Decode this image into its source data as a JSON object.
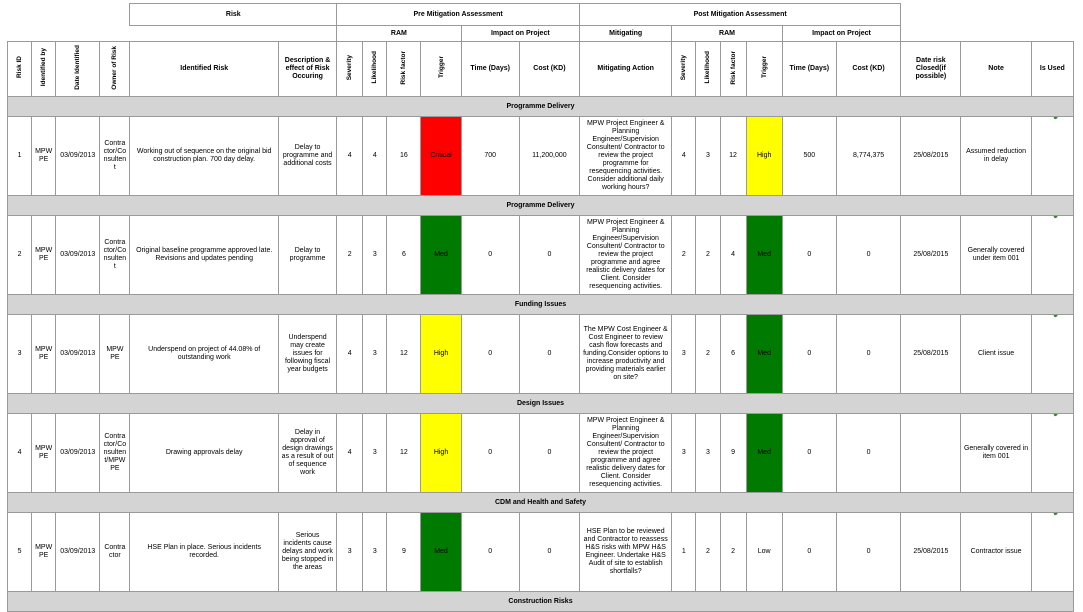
{
  "colors": {
    "critical": "#ff0000",
    "high": "#ffff00",
    "med": "#007a00",
    "low": "#ffffff",
    "section": "#d4d4d4",
    "tick": "#2e8b2e"
  },
  "headers": {
    "risk_group": "Risk",
    "pre_group": "Pre Mitigation Assessment",
    "post_group": "Post Mitigation Assessment",
    "ram": "RAM",
    "impact": "Impact on Project",
    "mitigating": "Mitigating",
    "ram_post": "RAM",
    "impact_post": "Impact on Project",
    "risk_id": "Risk ID",
    "identified_by": "Identified by",
    "date_identified": "Date Identified",
    "owner": "Owner of Risk",
    "identified_risk": "Identified Risk",
    "description": "Description & effect of Risk Occuring",
    "severity": "Severity",
    "likelihood": "Likelihood",
    "risk_factor": "Risk factor",
    "trigger": "Trigger",
    "time_days": "Time (Days)",
    "cost_kd": "Cost (KD)",
    "mitigating_action": "Mitigating Action",
    "severity_post": "Severity",
    "likelihood_post": "Likelihood",
    "risk_factor_post": "Risk factor",
    "trigger_post": "Trigger",
    "time_days_post": "Time (Days)",
    "cost_kd_post": "Cost (KD)",
    "date_closed": "Date risk Closed(if possible)",
    "note": "Note",
    "is_used": "Is Used"
  },
  "rows": [
    {
      "section": "Programme Delivery",
      "id": "1",
      "by": "MPW PE",
      "date": "03/09/2013",
      "owner": "Contra ctor/Co nsulten t",
      "risk": "Working out of sequence on the original bid construction plan. 700 day delay.",
      "desc": "Delay to programme and additional costs",
      "sev": "4",
      "lik": "4",
      "rf": "16",
      "trig": "Critical",
      "trig_color": "#ff0000",
      "time": "700",
      "cost": "11,200,000",
      "action": "MPW Project Engineer & Planning Engineer/Supervision Consultent/ Contractor to review the project programme for resequencing activities. Consider additional daily working hours?",
      "sev2": "4",
      "lik2": "3",
      "rf2": "12",
      "trig2": "High",
      "trig2_color": "#ffff00",
      "time2": "500",
      "cost2": "8,774,375",
      "closed": "25/08/2015",
      "note": "Assumed reduction in delay",
      "used": "✔"
    },
    {
      "section": "Programme Delivery",
      "id": "2",
      "by": "MPW PE",
      "date": "03/09/2013",
      "owner": "Contra ctor/Co nsulten t",
      "risk": "Original baseline programme approved late. Revisions and updates pending",
      "desc": "Delay to programme",
      "sev": "2",
      "lik": "3",
      "rf": "6",
      "trig": "Med",
      "trig_color": "#007a00",
      "time": "0",
      "cost": "0",
      "action": "MPW Project Engineer & Planning Engineer/Supervision Consultent/ Contractor to review the project programme and agree realistic delivery dates for Client. Consider resequencing activities.",
      "sev2": "2",
      "lik2": "2",
      "rf2": "4",
      "trig2": "Med",
      "trig2_color": "#007a00",
      "time2": "0",
      "cost2": "0",
      "closed": "25/08/2015",
      "note": "Generally covered under item 001",
      "used": "✔"
    },
    {
      "section": "Funding Issues",
      "id": "3",
      "by": "MPW PE",
      "date": "03/09/2013",
      "owner": "MPW PE",
      "risk": "Underspend on project of 44.08% of outstanding work",
      "desc": "Underspend may create issues for following fiscal year budgets",
      "sev": "4",
      "lik": "3",
      "rf": "12",
      "trig": "High",
      "trig_color": "#ffff00",
      "time": "0",
      "cost": "0",
      "action": "The MPW Cost Engineer & Cost Engineer to review cash flow forecasts and funding.Consider options to increase productivity and providing materials earlier on site?",
      "sev2": "3",
      "lik2": "2",
      "rf2": "6",
      "trig2": "Med",
      "trig2_color": "#007a00",
      "time2": "0",
      "cost2": "0",
      "closed": "25/08/2015",
      "note": "Client issue",
      "used": "✔"
    },
    {
      "section": "Design Issues",
      "id": "4",
      "by": "MPW PE",
      "date": "03/09/2013",
      "owner": "Contra ctor/Co nsulten t/MPW PE",
      "risk": "Drawing approvals delay",
      "desc": "Delay in approval of design drawings as a result of out of sequence work",
      "sev": "4",
      "lik": "3",
      "rf": "12",
      "trig": "High",
      "trig_color": "#ffff00",
      "time": "0",
      "cost": "0",
      "action": "MPW Project Engineer & Planning Engineer/Supervision Consultent/ Contractor to review the project programme and agree realistic delivery dates for Client. Consider resequencing activities.",
      "sev2": "3",
      "lik2": "3",
      "rf2": "9",
      "trig2": "Med",
      "trig2_color": "#007a00",
      "time2": "0",
      "cost2": "0",
      "closed": "",
      "note": "Generally covered in item 001",
      "used": "✔"
    },
    {
      "section": "CDM and Health and Safety",
      "id": "5",
      "by": "MPW PE",
      "date": "03/09/2013",
      "owner": "Contra ctor",
      "risk": "HSE Plan in place. Serious incidents recorded.",
      "desc": "Serious incidents cause delays and work being stopped in the areas",
      "sev": "3",
      "lik": "3",
      "rf": "9",
      "trig": "Med",
      "trig_color": "#007a00",
      "time": "0",
      "cost": "0",
      "action": "HSE Plan to be reviewed and Contractor to reassess H&S risks with MPW H&S Engineer. Undertake H&S Audit of site to establish shortfalls?",
      "sev2": "1",
      "lik2": "2",
      "rf2": "2",
      "trig2": "Low",
      "trig2_color": "#ffffff",
      "time2": "0",
      "cost2": "0",
      "closed": "25/08/2015",
      "note": "Contractor issue",
      "used": "✔"
    }
  ],
  "trailing_section": "Construction Risks"
}
